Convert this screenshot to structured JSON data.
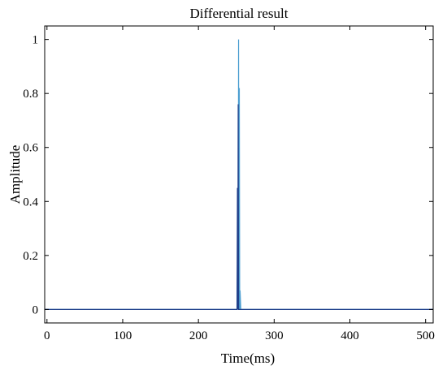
{
  "chart_data": {
    "type": "line",
    "title": "Differential result",
    "xlabel": "Time(ms)",
    "ylabel": "Amplitude",
    "xlim": [
      -3,
      510
    ],
    "ylim": [
      -0.05,
      1.05
    ],
    "x_ticks": [
      0,
      100,
      200,
      300,
      400,
      500
    ],
    "x_tick_labels": [
      "0",
      "100",
      "200",
      "300",
      "400",
      "500"
    ],
    "y_ticks": [
      0,
      0.2,
      0.4,
      0.6,
      0.8,
      1
    ],
    "y_tick_labels": [
      "0",
      "0.2",
      "0.4",
      "0.6",
      "0.8",
      "1"
    ],
    "grid": false,
    "legend": "none",
    "series": [
      {
        "color": "#4d9fd1",
        "x": [
          -3,
          250,
          251,
          252,
          252.5,
          253,
          253.5,
          254,
          254.5,
          255,
          256,
          510
        ],
        "y": [
          0,
          0,
          0.0,
          0.35,
          0.0,
          1.0,
          0.0,
          0.82,
          0.0,
          0.07,
          0,
          0
        ]
      },
      {
        "color": "#1f3f8a",
        "x": [
          -3,
          251,
          251.5,
          252,
          252.5,
          253,
          254,
          510
        ],
        "y": [
          0,
          0,
          0.45,
          0.0,
          0.76,
          0.0,
          0,
          0
        ]
      }
    ]
  }
}
